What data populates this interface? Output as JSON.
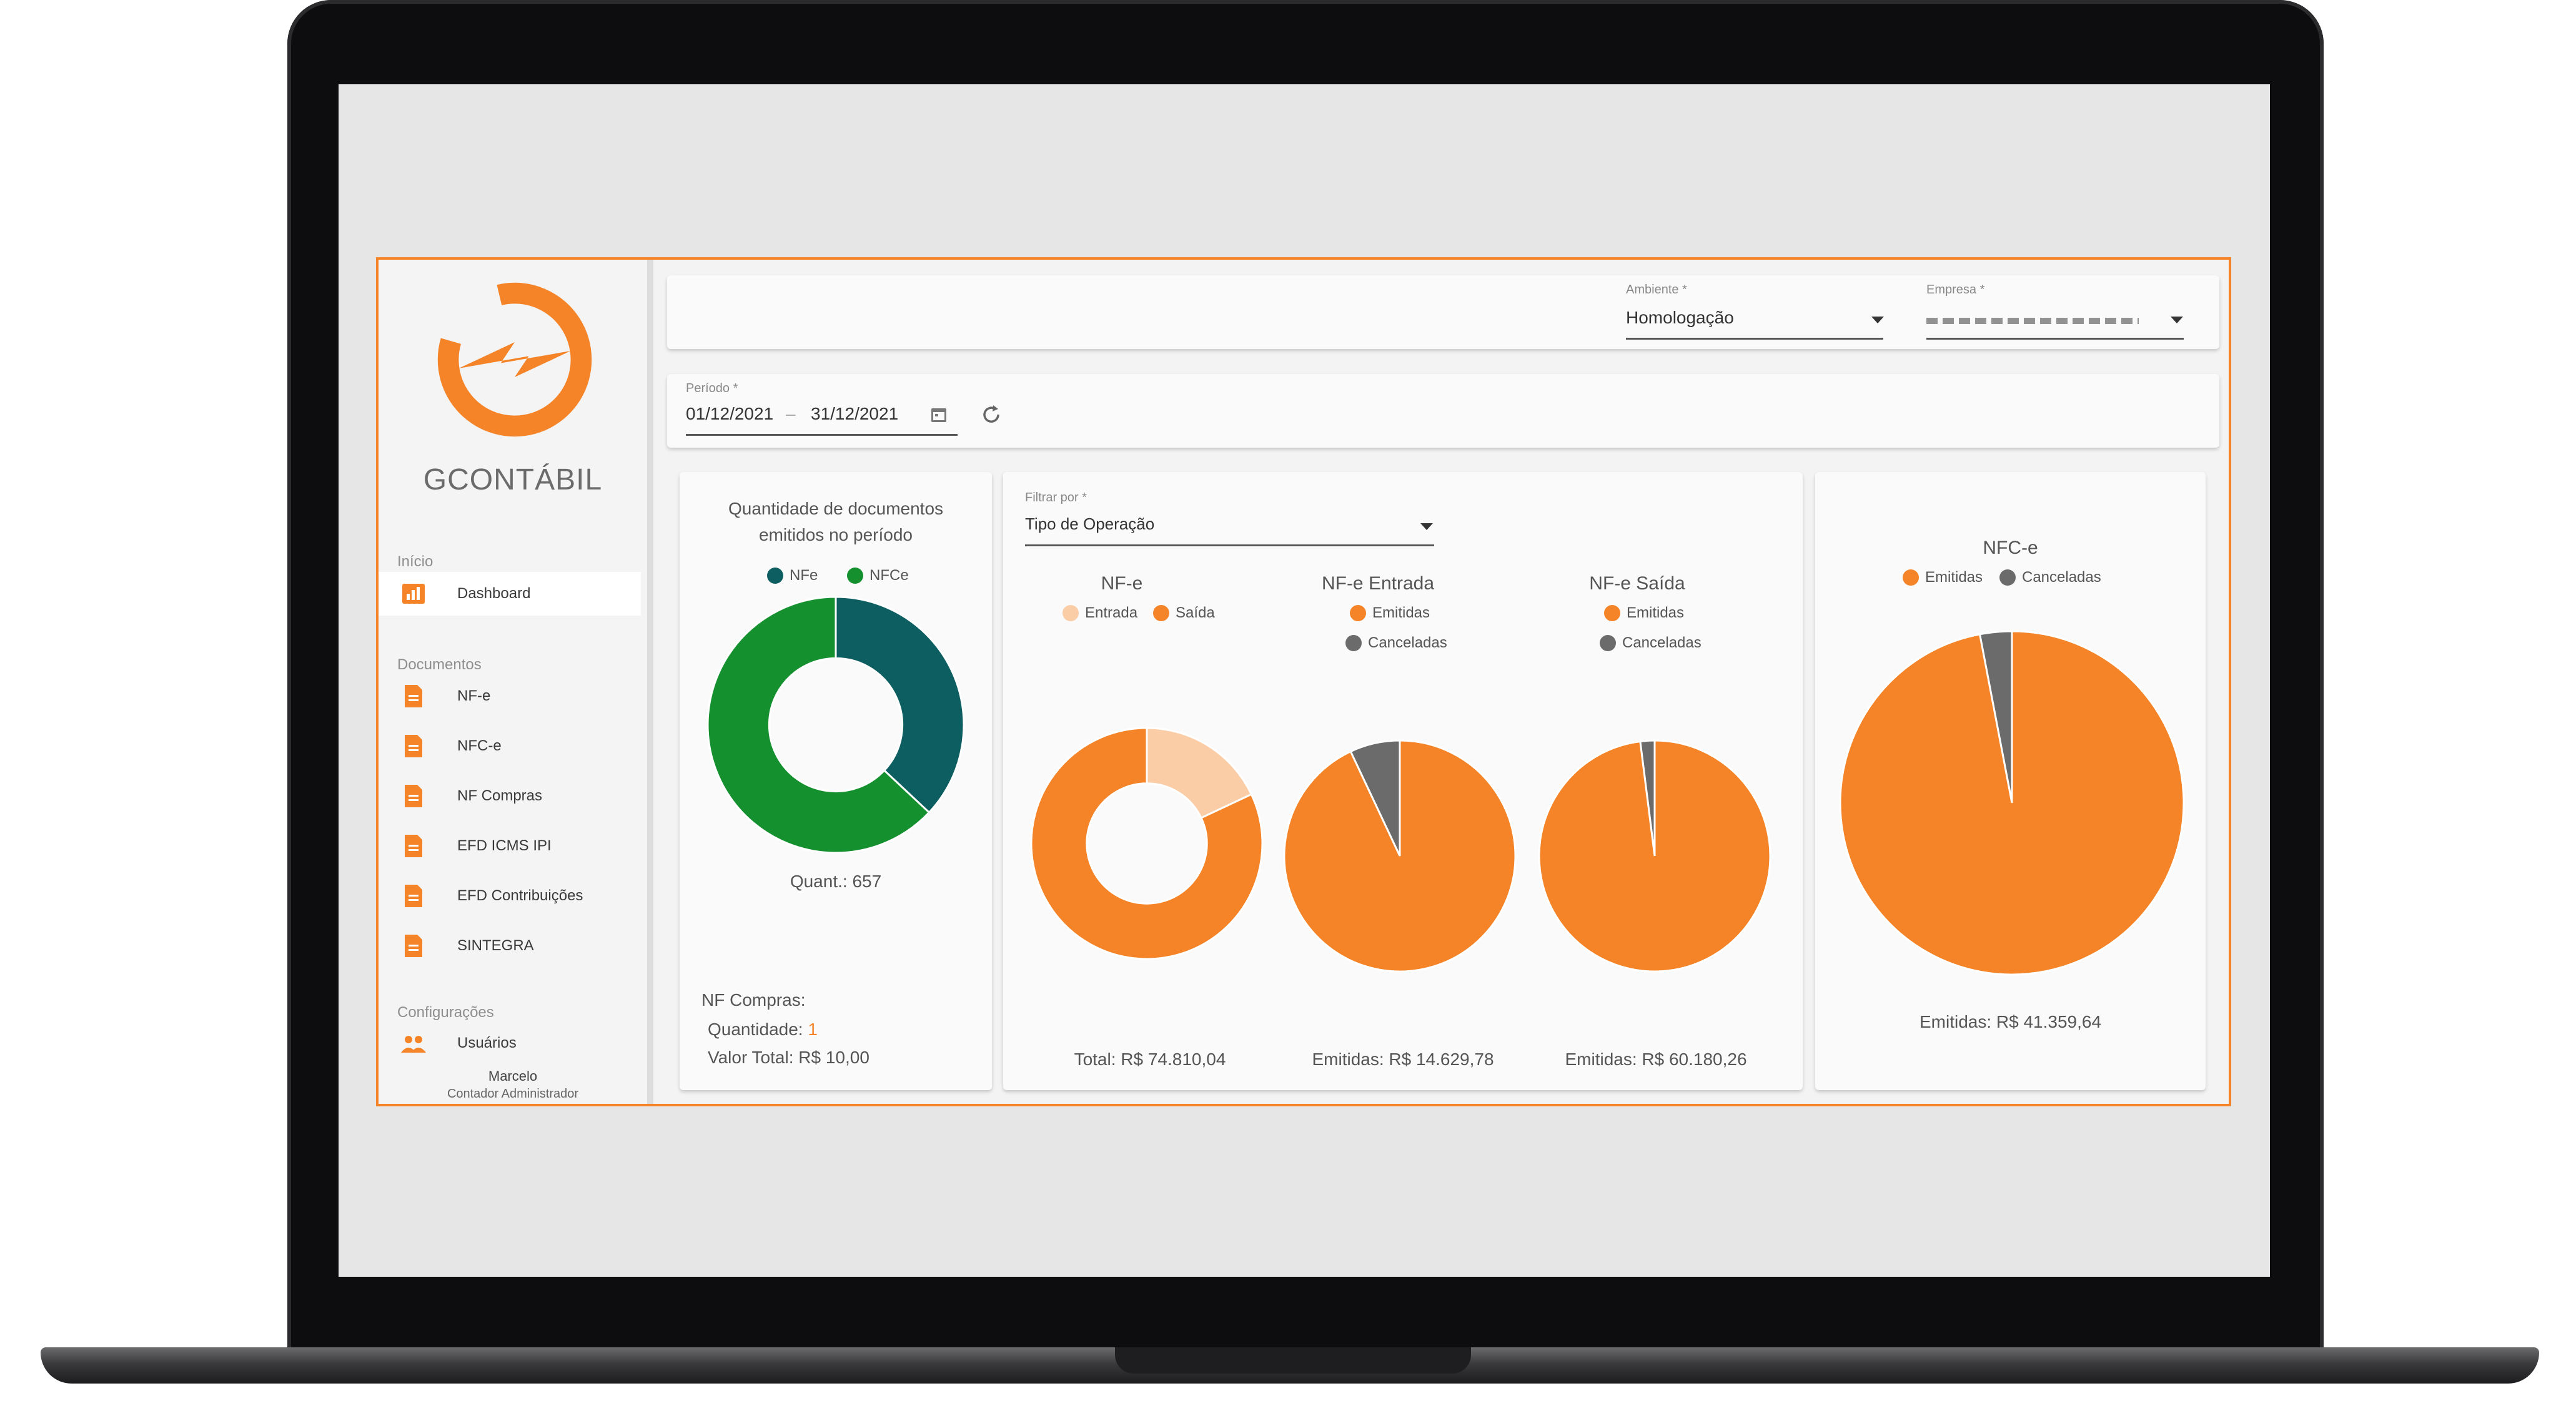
{
  "app": {
    "brand": "GCONTÁBIL"
  },
  "colors": {
    "accent": "#f58428",
    "nfe": "#0d5e61",
    "nfce": "#14902e",
    "entrada": "#fbcda6",
    "cancel": "#6b6b6b"
  },
  "sidebar": {
    "sections": {
      "inicio": "Início",
      "documentos": "Documentos",
      "config": "Configurações"
    },
    "items": [
      {
        "label": "Dashboard",
        "icon": "bar-chart-icon"
      },
      {
        "label": "NF-e",
        "icon": "document-icon"
      },
      {
        "label": "NFC-e",
        "icon": "document-icon"
      },
      {
        "label": "NF Compras",
        "icon": "document-icon"
      },
      {
        "label": "EFD ICMS IPI",
        "icon": "document-icon"
      },
      {
        "label": "EFD Contribuições",
        "icon": "document-icon"
      },
      {
        "label": "SINTEGRA",
        "icon": "document-icon"
      },
      {
        "label": "Usuários",
        "icon": "users-icon"
      }
    ],
    "user": {
      "name": "Marcelo",
      "role": "Contador Administrador"
    }
  },
  "filters": {
    "ambiente": {
      "label": "Ambiente *",
      "value": "Homologação"
    },
    "empresa": {
      "label": "Empresa *",
      "value": ""
    },
    "periodo": {
      "label": "Período *",
      "start": "01/12/2021",
      "separator": "–",
      "end": "31/12/2021"
    },
    "filtrar": {
      "label": "Filtrar por *",
      "value": "Tipo de Operação"
    }
  },
  "docs_card": {
    "title_line1": "Quantidade de documentos",
    "title_line2": "emitidos no período",
    "quant": "Quant.: 657",
    "compras_title": "NF Compras:",
    "compras_qtd_label": "Quantidade:",
    "compras_qtd_value": "1",
    "compras_valor": "Valor Total: R$ 10,00"
  },
  "chart_data": [
    {
      "type": "pie",
      "id": "docs",
      "donut": true,
      "labels": [
        "NFe",
        "NFCe"
      ],
      "values": [
        0.37,
        0.63
      ]
    },
    {
      "type": "pie",
      "id": "nfe",
      "title": "NF-e",
      "donut": true,
      "labels": [
        "Entrada",
        "Saída"
      ],
      "values": [
        0.18,
        0.82
      ],
      "footer": "Total: R$ 74.810,04"
    },
    {
      "type": "pie",
      "id": "nfe_entrada",
      "title": "NF-e Entrada",
      "labels": [
        "Emitidas",
        "Canceladas"
      ],
      "values": [
        0.93,
        0.07
      ],
      "footer": "Emitidas: R$ 14.629,78"
    },
    {
      "type": "pie",
      "id": "nfe_saida",
      "title": "NF-e Saída",
      "labels": [
        "Emitidas",
        "Canceladas"
      ],
      "values": [
        0.98,
        0.02
      ],
      "footer": "Emitidas: R$ 60.180,26"
    },
    {
      "type": "pie",
      "id": "nfce",
      "title": "NFC-e",
      "labels": [
        "Emitidas",
        "Canceladas"
      ],
      "values": [
        0.97,
        0.03
      ],
      "footer": "Emitidas: R$ 41.359,64"
    }
  ]
}
